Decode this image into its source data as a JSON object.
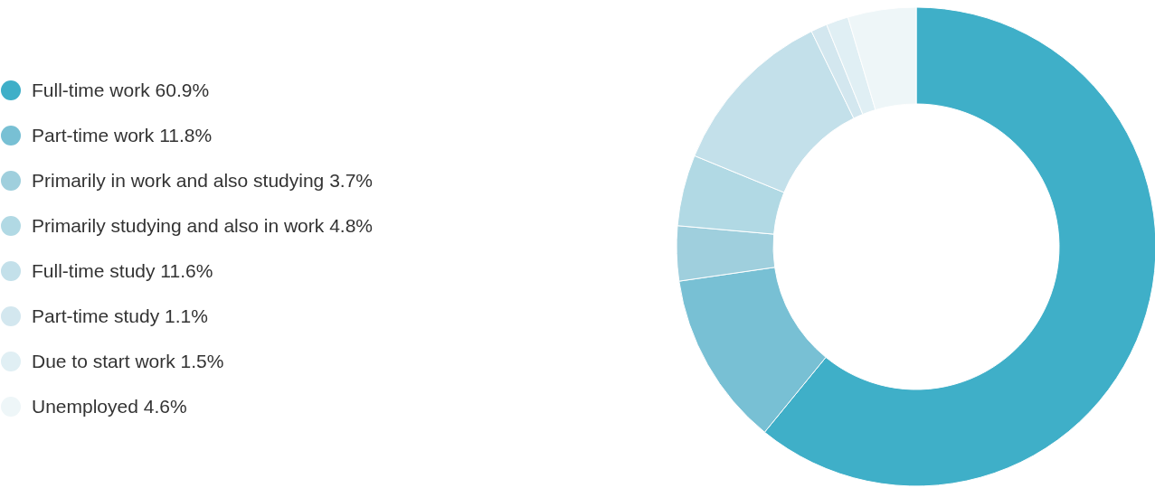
{
  "chart_data": {
    "type": "donut",
    "categories": [
      "Full-time work",
      "Part-time work",
      "Primarily in work and also studying",
      "Primarily studying and also in work",
      "Full-time study",
      "Part-time study",
      "Due to start work",
      "Unemployed"
    ],
    "values": [
      60.9,
      11.8,
      3.7,
      4.8,
      11.6,
      1.1,
      1.5,
      4.6
    ],
    "value_labels": [
      "60.9%",
      "11.8%",
      "3.7%",
      "4.8%",
      "11.6%",
      "1.1%",
      "1.5%",
      "4.6%"
    ],
    "colors": [
      "#3fafc8",
      "#78c0d4",
      "#9fcfdd",
      "#b1d9e4",
      "#c3e0ea",
      "#d3e7ef",
      "#e0eff4",
      "#eef6f8"
    ],
    "legend": "left"
  }
}
